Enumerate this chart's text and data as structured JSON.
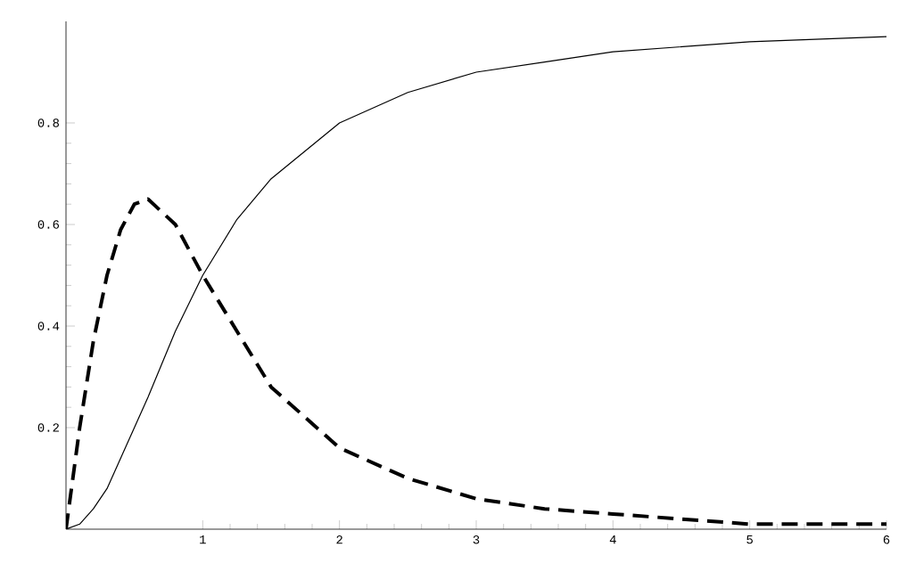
{
  "chart_data": {
    "type": "line",
    "x": [
      0,
      0.1,
      0.2,
      0.3,
      0.4,
      0.5,
      0.6,
      0.8,
      1,
      1.25,
      1.5,
      2,
      2.5,
      3,
      3.5,
      4,
      5,
      6
    ],
    "series": [
      {
        "color": "#000000",
        "line_style": "solid",
        "values": [
          0,
          0.01,
          0.04,
          0.08,
          0.14,
          0.2,
          0.26,
          0.39,
          0.5,
          0.61,
          0.69,
          0.8,
          0.86,
          0.9,
          0.92,
          0.94,
          0.96,
          0.97
        ]
      },
      {
        "color": "#000000",
        "line_style": "dashed",
        "values": [
          0,
          0.2,
          0.37,
          0.5,
          0.59,
          0.64,
          0.65,
          0.6,
          0.5,
          0.39,
          0.28,
          0.16,
          0.1,
          0.06,
          0.04,
          0.03,
          0.01,
          0.01
        ]
      }
    ],
    "xlim": [
      0,
      6
    ],
    "ylim": [
      0,
      1
    ],
    "xticks": [
      1,
      2,
      3,
      4,
      5,
      6
    ],
    "yticks": [
      0.2,
      0.4,
      0.6,
      0.8
    ],
    "grid": false,
    "marker": "none"
  }
}
